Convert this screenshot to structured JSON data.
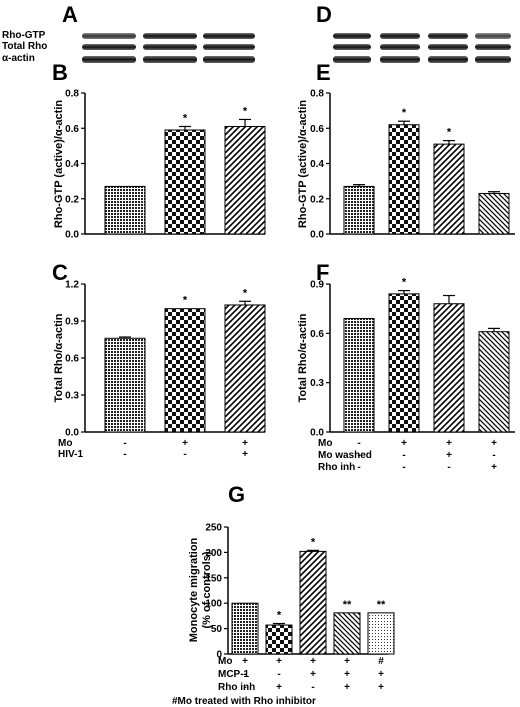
{
  "blot_labels": [
    "Rho-GTP",
    "Total Rho",
    "α-actin"
  ],
  "conditions": {
    "left": {
      "rows": [
        {
          "label": "Mo",
          "marks": [
            "-",
            "+",
            "+"
          ]
        },
        {
          "label": "HIV-1",
          "marks": [
            "-",
            "-",
            "+"
          ]
        }
      ]
    },
    "right": {
      "rows": [
        {
          "label": "Mo",
          "marks": [
            "-",
            "+",
            "+",
            "+"
          ]
        },
        {
          "label": "Mo washed",
          "marks": [
            "-",
            "-",
            "+",
            "-"
          ]
        },
        {
          "label": "Rho inh",
          "marks": [
            "-",
            "-",
            "-",
            "+"
          ]
        }
      ]
    },
    "bottom": {
      "rows": [
        {
          "label": "Mo",
          "marks": [
            "+",
            "+",
            "+",
            "+",
            "#"
          ]
        },
        {
          "label": "MCP-1",
          "marks": [
            "-",
            "-",
            "+",
            "+",
            "+"
          ]
        },
        {
          "label": "Rho inh",
          "marks": [
            "-",
            "+",
            "-",
            "+",
            "+"
          ]
        }
      ]
    }
  },
  "footnote": "#Mo treated with Rho inhibitor",
  "chart_data": [
    {
      "panel": "B",
      "type": "bar",
      "ylabel": "Rho-GTP (active)/α-actin",
      "ylim": [
        0,
        0.8
      ],
      "yticks": [
        "0.0",
        "0.2",
        "0.4",
        "0.6",
        "0.8"
      ],
      "values": [
        0.27,
        0.59,
        0.61
      ],
      "errors": [
        0,
        0.02,
        0.04
      ],
      "stars": [
        "",
        "*",
        "*"
      ],
      "patterns": [
        "dots",
        "checker",
        "diag"
      ]
    },
    {
      "panel": "C",
      "type": "bar",
      "ylabel": "Total Rho/α-actin",
      "ylim": [
        0,
        1.2
      ],
      "yticks": [
        "0.0",
        "0.3",
        "0.6",
        "0.9",
        "1.2"
      ],
      "values": [
        0.76,
        1.0,
        1.03
      ],
      "errors": [
        0.01,
        0,
        0.03
      ],
      "stars": [
        "",
        "*",
        "*"
      ],
      "patterns": [
        "dots",
        "checker",
        "diag"
      ]
    },
    {
      "panel": "E",
      "type": "bar",
      "ylabel": "Rho-GTP (active)/α-actin",
      "ylim": [
        0,
        0.8
      ],
      "yticks": [
        "0.0",
        "0.2",
        "0.4",
        "0.6",
        "0.8"
      ],
      "values": [
        0.27,
        0.62,
        0.51,
        0.23
      ],
      "errors": [
        0.01,
        0.02,
        0.02,
        0.01
      ],
      "stars": [
        "",
        "*",
        "*",
        ""
      ],
      "patterns": [
        "dots",
        "checker",
        "diag",
        "backdiag"
      ]
    },
    {
      "panel": "F",
      "type": "bar",
      "ylabel": "Total Rho/α-actin",
      "ylim": [
        0,
        0.9
      ],
      "yticks": [
        "0.0",
        "0.3",
        "0.6",
        "0.9"
      ],
      "values": [
        0.69,
        0.84,
        0.78,
        0.61
      ],
      "errors": [
        0,
        0.02,
        0.05,
        0.02
      ],
      "stars": [
        "",
        "*",
        "",
        ""
      ],
      "patterns": [
        "dots",
        "checker",
        "diag",
        "backdiag"
      ]
    },
    {
      "panel": "G",
      "type": "bar",
      "ylabel": "Monocyte migration (% of controls)",
      "ylim": [
        0,
        250
      ],
      "yticks": [
        "0",
        "50",
        "100",
        "150",
        "200",
        "250"
      ],
      "values": [
        100,
        57,
        202,
        81,
        81
      ],
      "errors": [
        0,
        3,
        2,
        0,
        0
      ],
      "stars": [
        "",
        "*",
        "*",
        "**",
        "**"
      ],
      "patterns": [
        "dots",
        "checker",
        "diag",
        "backdiag",
        "fine"
      ]
    }
  ]
}
